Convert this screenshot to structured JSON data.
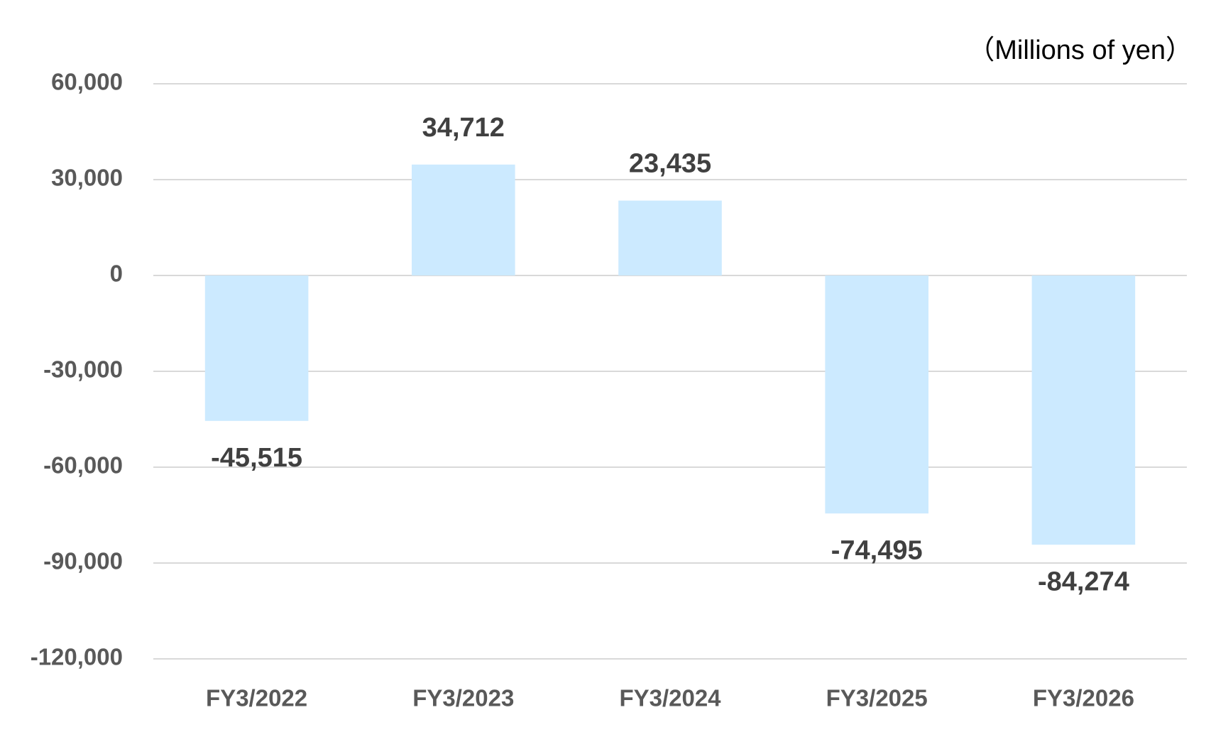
{
  "chart_data": {
    "type": "bar",
    "unit_label": "（Millions of yen）",
    "categories": [
      "FY3/2022",
      "FY3/2023",
      "FY3/2024",
      "FY3/2025",
      "FY3/2026"
    ],
    "values": [
      -45515,
      34712,
      23435,
      -74495,
      -84274
    ],
    "value_labels": [
      "-45,515",
      "34,712",
      "23,435",
      "-74,495",
      "-84,274"
    ],
    "color": "#cceaff",
    "ylim": [
      -120000,
      60000
    ],
    "yticks": [
      {
        "value": -120000,
        "label": "-120,000"
      },
      {
        "value": -90000,
        "label": "-90,000"
      },
      {
        "value": -60000,
        "label": "-60,000"
      },
      {
        "value": -30000,
        "label": "-30,000"
      },
      0,
      {
        "value": 30000,
        "label": "30,000"
      },
      {
        "value": 60000,
        "label": "60,000"
      }
    ],
    "grid": true
  }
}
